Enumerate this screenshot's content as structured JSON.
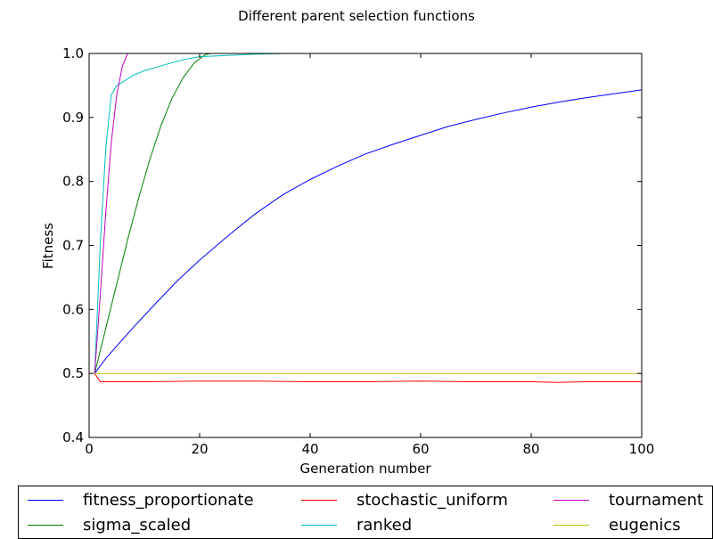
{
  "chart_data": {
    "type": "line",
    "title": "Different parent selection functions",
    "xlabel": "Generation number",
    "ylabel": "Fitness",
    "xlim": [
      0,
      100
    ],
    "ylim": [
      0.4,
      1.0
    ],
    "xticks": [
      "0",
      "20",
      "40",
      "60",
      "80",
      "100"
    ],
    "yticks": [
      "0.4",
      "0.5",
      "0.6",
      "0.7",
      "0.8",
      "0.9",
      "1.0"
    ],
    "legend_position": "below",
    "series": [
      {
        "name": "fitness_proportionate",
        "color": "#0000ff",
        "x": [
          1,
          3,
          5,
          8,
          12,
          16,
          20,
          25,
          30,
          35,
          40,
          45,
          50,
          55,
          60,
          65,
          70,
          75,
          80,
          85,
          90,
          95,
          100
        ],
        "y": [
          0.5,
          0.523,
          0.543,
          0.572,
          0.609,
          0.645,
          0.677,
          0.714,
          0.749,
          0.779,
          0.803,
          0.824,
          0.843,
          0.858,
          0.872,
          0.886,
          0.897,
          0.907,
          0.916,
          0.924,
          0.931,
          0.937,
          0.943
        ]
      },
      {
        "name": "sigma_scaled",
        "color": "#008000",
        "x": [
          1,
          3,
          5,
          7,
          9,
          11,
          13,
          15,
          17,
          19,
          21,
          22
        ],
        "y": [
          0.5,
          0.57,
          0.64,
          0.71,
          0.775,
          0.835,
          0.887,
          0.93,
          0.962,
          0.985,
          0.998,
          1.0
        ]
      },
      {
        "name": "stochastic_uniform",
        "color": "#ff0000",
        "x": [
          1,
          2,
          5,
          10,
          20,
          30,
          40,
          50,
          60,
          70,
          80,
          85,
          90,
          95,
          100
        ],
        "y": [
          0.5,
          0.487,
          0.487,
          0.487,
          0.488,
          0.488,
          0.487,
          0.487,
          0.488,
          0.487,
          0.487,
          0.486,
          0.487,
          0.487,
          0.487
        ]
      },
      {
        "name": "ranked",
        "color": "#00bfbf",
        "x": [
          1,
          2,
          3,
          4,
          5,
          6,
          8,
          10,
          12,
          14,
          16,
          18,
          20,
          25,
          30,
          36
        ],
        "y": [
          0.5,
          0.7,
          0.85,
          0.935,
          0.95,
          0.955,
          0.966,
          0.973,
          0.978,
          0.983,
          0.988,
          0.992,
          0.995,
          0.997,
          0.999,
          1.0
        ]
      },
      {
        "name": "tournament",
        "color": "#bf00bf",
        "x": [
          1,
          2,
          3,
          4,
          5,
          6,
          7
        ],
        "y": [
          0.5,
          0.62,
          0.75,
          0.86,
          0.935,
          0.98,
          1.0
        ]
      },
      {
        "name": "eugenics",
        "color": "#bfbf00",
        "x": [
          1,
          10,
          20,
          30,
          40,
          50,
          60,
          70,
          80,
          90,
          100
        ],
        "y": [
          0.5,
          0.5,
          0.5,
          0.5,
          0.5,
          0.5,
          0.5,
          0.5,
          0.5,
          0.5,
          0.5
        ]
      }
    ]
  }
}
